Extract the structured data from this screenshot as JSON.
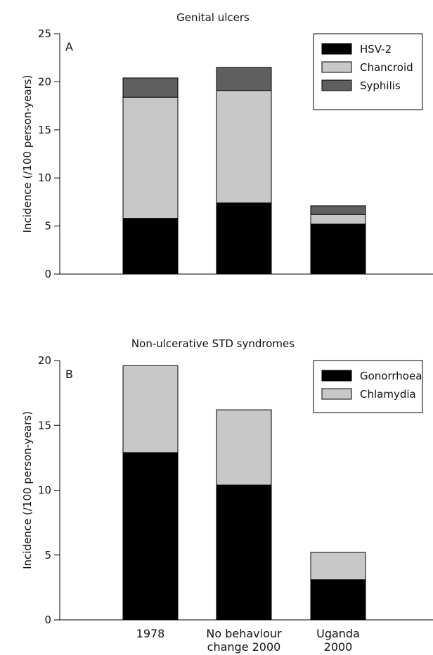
{
  "chart_data": [
    {
      "type": "bar",
      "stacked": true,
      "title": "Genital ulcers",
      "panel_label": "A",
      "ylabel": "Incidence (/100 person-years)",
      "xlabel": "",
      "ylim": [
        0,
        25
      ],
      "yticks": [
        0,
        5,
        10,
        15,
        20,
        25
      ],
      "categories": [
        "1978",
        "No behaviour change 2000",
        "Uganda 2000"
      ],
      "series": [
        {
          "name": "HSV-2",
          "values": [
            5.8,
            7.4,
            5.2
          ],
          "color": "#000000"
        },
        {
          "name": "Chancroid",
          "values": [
            12.6,
            11.7,
            1.0
          ],
          "color": "#c8c8c8"
        },
        {
          "name": "Syphilis",
          "values": [
            2.0,
            2.4,
            0.9
          ],
          "color": "#5f5f5f"
        }
      ],
      "legend_position": "top-right"
    },
    {
      "type": "bar",
      "stacked": true,
      "title": "Non-ulcerative STD syndromes",
      "panel_label": "B",
      "ylabel": "Incidence (/100 person-years)",
      "xlabel": "",
      "ylim": [
        0,
        20
      ],
      "yticks": [
        0,
        5,
        10,
        15,
        20
      ],
      "categories": [
        "1978",
        "No behaviour change 2000",
        "Uganda 2000"
      ],
      "category_labels": [
        [
          "1978"
        ],
        [
          "No behaviour",
          "change 2000"
        ],
        [
          "Uganda",
          "2000"
        ]
      ],
      "series": [
        {
          "name": "Gonorrhoea",
          "values": [
            12.9,
            10.4,
            3.1
          ],
          "color": "#000000"
        },
        {
          "name": "Chlamydia",
          "values": [
            6.7,
            5.8,
            2.1
          ],
          "color": "#c8c8c8"
        }
      ],
      "legend_position": "top-right"
    }
  ]
}
